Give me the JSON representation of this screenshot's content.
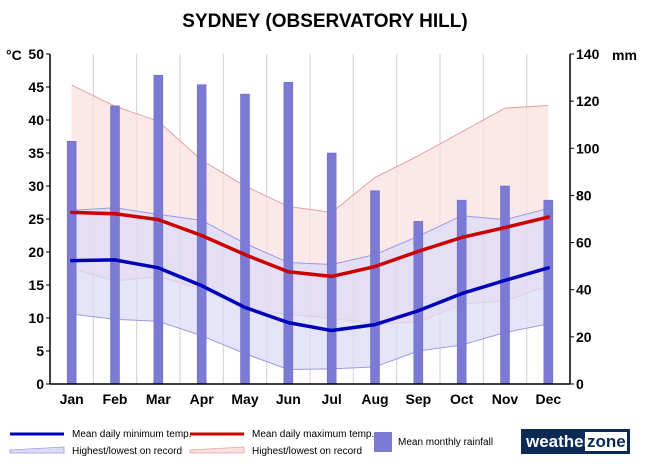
{
  "chart_data": {
    "type": "bar",
    "title": "SYDNEY (OBSERVATORY HILL)",
    "ylabel_left": "°C",
    "ylabel_right": "mm",
    "categories": [
      "Jan",
      "Feb",
      "Mar",
      "Apr",
      "May",
      "Jun",
      "Jul",
      "Aug",
      "Sep",
      "Oct",
      "Nov",
      "Dec"
    ],
    "ylim_left": [
      0,
      50
    ],
    "ylim_right": [
      0,
      140
    ],
    "yticks_left": [
      0,
      5,
      10,
      15,
      20,
      25,
      30,
      35,
      40,
      45,
      50
    ],
    "yticks_right": [
      0,
      20,
      40,
      60,
      80,
      100,
      120,
      140
    ],
    "legend_placement": "bottom",
    "grid": "vertical",
    "series": [
      {
        "name": "Mean monthly rainfall",
        "kind": "bar",
        "axis": "right",
        "color": "#7b7bd6",
        "values": [
          103,
          118,
          131,
          127,
          123,
          128,
          98,
          82,
          69,
          78,
          84,
          78
        ]
      },
      {
        "name": "Mean daily minimum temp.",
        "kind": "line",
        "axis": "left",
        "color": "#0000bb",
        "values": [
          18.7,
          18.8,
          17.6,
          14.9,
          11.6,
          9.3,
          8.1,
          9.0,
          11.1,
          13.7,
          15.7,
          17.6
        ]
      },
      {
        "name": "Mean daily maximum temp.",
        "kind": "line",
        "axis": "left",
        "color": "#cc0000",
        "values": [
          26.0,
          25.8,
          24.9,
          22.5,
          19.6,
          17.0,
          16.3,
          17.8,
          20.1,
          22.2,
          23.7,
          25.3
        ]
      },
      {
        "name": "Highest/lowest on record",
        "kind": "band",
        "axis": "left",
        "of": "Mean daily minimum temp.",
        "fill": "#dcdcf8",
        "stroke": "#9a9ae4",
        "upper": [
          26.3,
          26.7,
          25.7,
          24.8,
          21.3,
          18.4,
          18.1,
          19.6,
          22.4,
          25.5,
          24.9,
          26.6
        ],
        "lower": [
          10.6,
          9.8,
          9.5,
          7.3,
          4.6,
          2.2,
          2.3,
          2.6,
          5.0,
          5.9,
          7.8,
          9.1
        ]
      },
      {
        "name": "Highest/lowest on record",
        "kind": "band",
        "axis": "left",
        "of": "Mean daily maximum temp.",
        "fill": "#fae0e0",
        "stroke": "#e8a0a0",
        "upper": [
          45.3,
          42.1,
          39.8,
          33.9,
          30.0,
          26.9,
          26.0,
          31.3,
          34.6,
          38.2,
          41.8,
          42.2
        ],
        "lower": [
          17.5,
          15.6,
          16.3,
          14.4,
          11.6,
          10.5,
          10.0,
          9.1,
          9.4,
          12.1,
          12.6,
          14.9
        ]
      }
    ]
  },
  "legend": {
    "min_line": "Mean daily minimum temp.",
    "min_band": "Highest/lowest on record",
    "max_line": "Mean daily maximum temp.",
    "max_band": "Highest/lowest on record",
    "rain": "Mean monthly rainfall"
  },
  "logo": {
    "part1": "weather",
    "part2": "zone"
  }
}
